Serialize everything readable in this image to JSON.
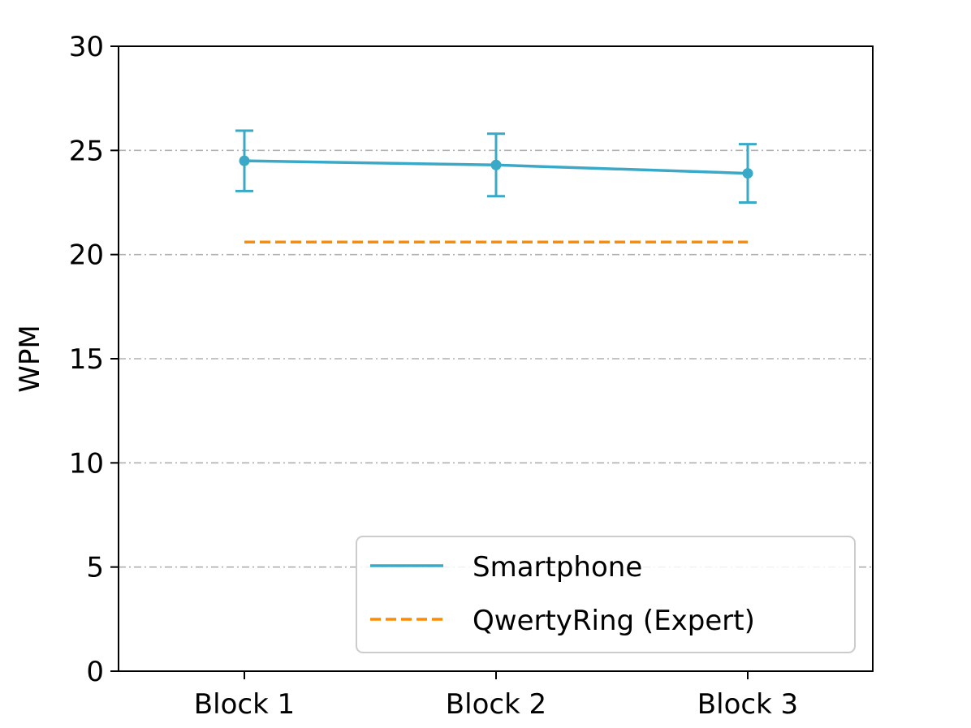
{
  "chart_data": {
    "type": "line",
    "categories": [
      "Block 1",
      "Block 2",
      "Block 3"
    ],
    "xlabel": "",
    "ylabel": "WPM",
    "ylim": [
      0,
      30
    ],
    "yticks": [
      "0",
      "5",
      "10",
      "15",
      "20",
      "25",
      "30"
    ],
    "grid": "horizontal dash-dot",
    "legend_position": "lower-right",
    "series": [
      {
        "name": "Smartphone",
        "values": [
          24.5,
          24.3,
          23.9
        ],
        "error": [
          1.45,
          1.5,
          1.4
        ],
        "color": "#3aa9c7",
        "style": "solid"
      },
      {
        "name": "QwertyRing (Expert)",
        "values": [
          20.6,
          20.6,
          20.6
        ],
        "color": "#ff8c00",
        "style": "dashed"
      }
    ]
  }
}
